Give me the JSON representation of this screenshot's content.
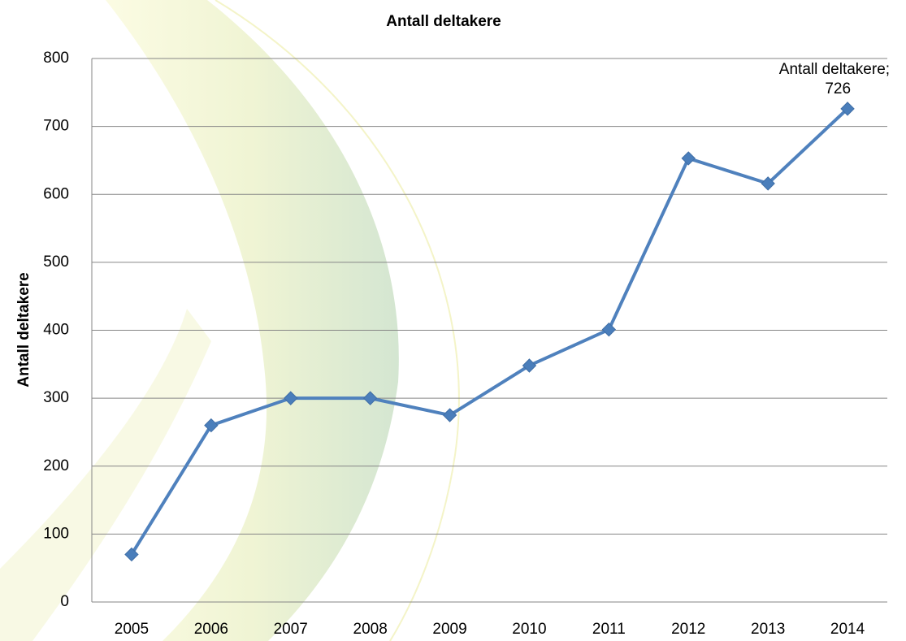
{
  "chart_data": {
    "type": "line",
    "title": "Antall deltakere",
    "ylabel": "Antall deltakere",
    "categories": [
      "2005",
      "2006",
      "2007",
      "2008",
      "2009",
      "2010",
      "2011",
      "2012",
      "2013",
      "2014"
    ],
    "series": [
      {
        "name": "Antall deltakere",
        "color": "#4f81bd",
        "values": [
          70,
          260,
          300,
          300,
          275,
          348,
          401,
          653,
          616,
          726
        ],
        "value_labels": [
          null,
          null,
          null,
          null,
          null,
          null,
          null,
          null,
          null,
          "Antall deltakere; 726"
        ]
      }
    ],
    "ylim": [
      0,
      800
    ],
    "yticks": [
      0,
      100,
      200,
      300,
      400,
      500,
      600,
      700,
      800
    ],
    "grid": true
  }
}
